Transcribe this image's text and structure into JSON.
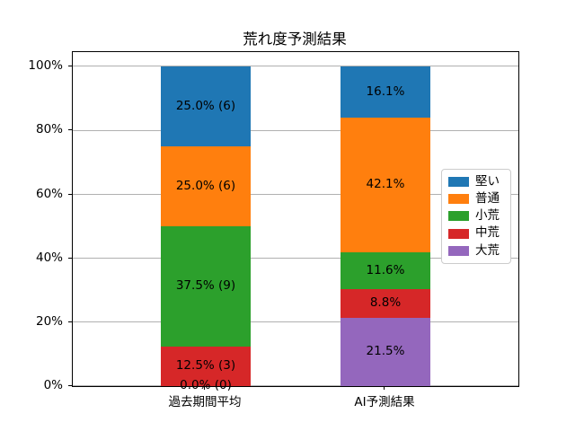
{
  "chart_data": {
    "type": "bar",
    "subtype": "stacked_percent",
    "title": "荒れ度予測結果",
    "categories": [
      "過去期間平均",
      "AI予測結果"
    ],
    "stack_order": "bottom_to_top",
    "series": [
      {
        "name": "大荒",
        "color": "#9467bd",
        "values": [
          0.0,
          21.5
        ],
        "value_labels": [
          "0.0% (0)",
          "21.5%"
        ]
      },
      {
        "name": "中荒",
        "color": "#d62728",
        "values": [
          12.5,
          8.8
        ],
        "value_labels": [
          "12.5% (3)",
          "8.8%"
        ]
      },
      {
        "name": "小荒",
        "color": "#2ca02c",
        "values": [
          37.5,
          11.6
        ],
        "value_labels": [
          "37.5% (9)",
          "11.6%"
        ]
      },
      {
        "name": "普通",
        "color": "#ff7f0e",
        "values": [
          25.0,
          42.1
        ],
        "value_labels": [
          "25.0% (6)",
          "42.1%"
        ]
      },
      {
        "name": "堅い",
        "color": "#1f77b4",
        "values": [
          25.0,
          16.1
        ],
        "value_labels": [
          "25.0% (6)",
          "16.1%"
        ]
      }
    ],
    "ytick_values": [
      0,
      20,
      40,
      60,
      80,
      100
    ],
    "ytick_labels": [
      "0%",
      "20%",
      "40%",
      "60%",
      "80%",
      "100%"
    ],
    "ylim": [
      0,
      104.6
    ],
    "grid": true,
    "grid_color": "#b0b0b0",
    "label_color": "#000000",
    "legend": {
      "position": "center_right",
      "items": [
        {
          "label": "堅い",
          "color": "#1f77b4"
        },
        {
          "label": "普通",
          "color": "#ff7f0e"
        },
        {
          "label": "小荒",
          "color": "#2ca02c"
        },
        {
          "label": "中荒",
          "color": "#d62728"
        },
        {
          "label": "大荒",
          "color": "#9467bd"
        }
      ]
    }
  }
}
